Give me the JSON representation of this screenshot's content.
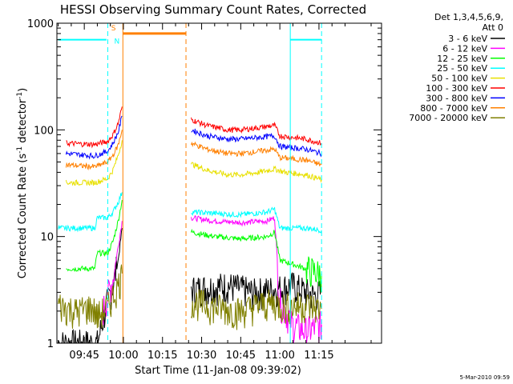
{
  "chart_data": {
    "type": "line",
    "title": "HESSI Observing Summary Count Rates, Corrected",
    "xlabel": "Start Time (11-Jan-08 09:39:02)",
    "ylabel_main": "Corrected Count Rate (s",
    "ylabel_sup1": "-1",
    "ylabel_mid": " detector",
    "ylabel_sup2": "-1",
    "ylabel_end": ")",
    "y_scale": "log",
    "ylim": [
      1,
      1000
    ],
    "xlim": [
      -5.5,
      119
    ],
    "x_unit": "minutes after 09:40",
    "x_ticks": [
      {
        "value": 5,
        "label": "09:45"
      },
      {
        "value": 20,
        "label": "10:00"
      },
      {
        "value": 35,
        "label": "10:15"
      },
      {
        "value": 50,
        "label": "10:30"
      },
      {
        "value": 65,
        "label": "10:45"
      },
      {
        "value": 80,
        "label": "11:00"
      },
      {
        "value": 95,
        "label": "11:15"
      }
    ],
    "y_ticks": [
      {
        "value": 1,
        "label": "1"
      },
      {
        "value": 10,
        "label": "10"
      },
      {
        "value": 100,
        "label": "100"
      },
      {
        "value": 1000,
        "label": "1000"
      }
    ],
    "legend": {
      "header_line1": "Det 1,3,4,5,6,9,",
      "header_line2": "Att 0",
      "placement": "right-outside"
    },
    "series": [
      {
        "name": "3 - 6 keV",
        "color": "#000000",
        "segments": [
          {
            "x": [
              -5,
              10,
              14,
              16,
              18,
              19.5
            ],
            "y": [
              1,
              1,
              2.5,
              3.5,
              6,
              12
            ]
          },
          {
            "x": [
              46,
              60,
              70,
              80,
              85,
              93,
              96
            ],
            "y": [
              3.2,
              3.5,
              3.0,
              3.3,
              3.5,
              2.8,
              3.0
            ]
          }
        ]
      },
      {
        "name": "6 - 12 keV",
        "color": "#ff00ff",
        "segments": [
          {
            "x": [
              12,
              16,
              18,
              19.5
            ],
            "y": [
              2.0,
              4,
              8,
              14
            ]
          },
          {
            "x": [
              46,
              55,
              65,
              75,
              78,
              80,
              85,
              90,
              96
            ],
            "y": [
              15,
              14,
              13.5,
              14,
              15,
              2.5,
              1.5,
              1.3,
              1.5
            ]
          }
        ]
      },
      {
        "name": "12 - 25 keV",
        "color": "#00ff00",
        "segments": [
          {
            "x": [
              -2,
              9,
              10,
              14,
              16,
              18,
              19.5
            ],
            "y": [
              5,
              5,
              7,
              7,
              9,
              14,
              22
            ]
          },
          {
            "x": [
              46,
              55,
              65,
              75,
              78,
              80,
              85,
              90,
              96
            ],
            "y": [
              11,
              10,
              9.5,
              10,
              11,
              6,
              5.5,
              5,
              4.5
            ]
          }
        ]
      },
      {
        "name": "25 - 50 keV",
        "color": "#00ffff",
        "segments": [
          {
            "x": [
              -5,
              9,
              10,
              14,
              16,
              18,
              19.5
            ],
            "y": [
              12,
              12,
              15,
              15,
              17,
              21,
              26
            ]
          },
          {
            "x": [
              46,
              55,
              65,
              75,
              78,
              80,
              90,
              96
            ],
            "y": [
              17,
              16.5,
              16,
              17,
              18,
              12,
              12,
              11.5
            ]
          }
        ]
      },
      {
        "name": "50 - 100 keV",
        "color": "#e8e000",
        "segments": [
          {
            "x": [
              -2,
              9,
              14,
              16,
              18,
              19.5
            ],
            "y": [
              32,
              32,
              35,
              42,
              58,
              80
            ]
          },
          {
            "x": [
              46,
              52,
              60,
              65,
              72,
              78,
              82,
              90,
              96
            ],
            "y": [
              48,
              42,
              38,
              38,
              40,
              43,
              40,
              38,
              34
            ]
          }
        ]
      },
      {
        "name": "100 - 300 keV",
        "color": "#ff0000",
        "segments": [
          {
            "x": [
              -2,
              9,
              14,
              16,
              18,
              19.5
            ],
            "y": [
              75,
              73,
              78,
              90,
              115,
              165
            ]
          },
          {
            "x": [
              46,
              52,
              60,
              65,
              72,
              78,
              80,
              90,
              96
            ],
            "y": [
              125,
              110,
              100,
              100,
              105,
              110,
              88,
              82,
              75
            ]
          }
        ]
      },
      {
        "name": "300 - 800 keV",
        "color": "#0000ff",
        "segments": [
          {
            "x": [
              -2,
              9,
              14,
              16,
              18,
              19.5
            ],
            "y": [
              60,
              57,
              63,
              75,
              95,
              135
            ]
          },
          {
            "x": [
              46,
              52,
              60,
              65,
              72,
              78,
              80,
              90,
              96
            ],
            "y": [
              100,
              88,
              82,
              82,
              85,
              88,
              70,
              66,
              60
            ]
          }
        ]
      },
      {
        "name": "800 - 7000 keV",
        "color": "#ff8000",
        "segments": [
          {
            "x": [
              -2,
              9,
              14,
              16,
              18,
              19.5
            ],
            "y": [
              47,
              45,
              50,
              58,
              72,
              100
            ]
          },
          {
            "x": [
              46,
              52,
              60,
              65,
              72,
              78,
              80,
              90,
              96
            ],
            "y": [
              75,
              66,
              60,
              60,
              63,
              66,
              55,
              52,
              47
            ]
          }
        ]
      },
      {
        "name": "7000 - 20000 keV",
        "color": "#808000",
        "segments": [
          {
            "x": [
              -5,
              2,
              8,
              10,
              14,
              16,
              18,
              19.5
            ],
            "y": [
              2.3,
              2.0,
              2.2,
              1.8,
              2.2,
              2.8,
              3.5,
              4.5
            ]
          },
          {
            "x": [
              46,
              55,
              65,
              72,
              78,
              82,
              90,
              96
            ],
            "y": [
              2.5,
              2.2,
              2.0,
              2.3,
              2.4,
              2.2,
              2.3,
              2.1
            ]
          }
        ]
      }
    ],
    "state_markers": [
      {
        "color": "#00ffff",
        "style": "solid",
        "level": 700,
        "x_start": -5,
        "x_end": 13.5
      },
      {
        "color": "#00ffff",
        "style": "solid",
        "level": 700,
        "x_start": 84,
        "x_end": 96
      },
      {
        "color": "#00ffff",
        "style": "solid",
        "level": 700,
        "x_start": -5,
        "x_end": -5,
        "vertical": true
      },
      {
        "color": "#00ffff",
        "style": "dashed",
        "x_vertical": 14
      },
      {
        "color": "#00ffff",
        "style": "solid",
        "x_vertical": 84
      },
      {
        "color": "#00ffff",
        "style": "dashed",
        "x_vertical": 96
      },
      {
        "color": "#ff8000",
        "style": "solid",
        "x_vertical": 19.8
      },
      {
        "color": "#ff8000",
        "style": "dashed",
        "x_vertical": 44
      },
      {
        "color": "#ff8000",
        "style": "solid",
        "level": 800,
        "x_start": 19.8,
        "x_end": 44,
        "thick": true
      }
    ],
    "flags": [
      {
        "label": "S",
        "color": "#ff8000",
        "x": 16.2,
        "level": 900
      },
      {
        "label": "N",
        "color": "#00ffff",
        "x": 17.5,
        "level": 680
      }
    ]
  },
  "timestamp": "5-Mar-2010 09:59"
}
